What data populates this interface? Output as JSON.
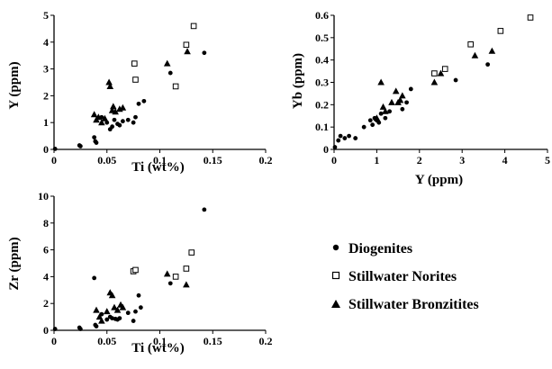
{
  "chart_data": [
    {
      "type": "scatter",
      "xlabel": "Ti (wt%)",
      "ylabel": "Y (ppm)",
      "xlim": [
        0,
        0.2
      ],
      "ylim": [
        0,
        5
      ],
      "xticks": [
        "0",
        "0.05",
        "0.1",
        "0.15",
        "0.2"
      ],
      "yticks": [
        "0",
        "1",
        "2",
        "3",
        "4",
        "5"
      ],
      "grid": false,
      "series": [
        {
          "name": "Diogenites",
          "marker": "circle",
          "points": [
            [
              0.001,
              0.02
            ],
            [
              0.024,
              0.15
            ],
            [
              0.025,
              0.12
            ],
            [
              0.038,
              0.45
            ],
            [
              0.039,
              0.3
            ],
            [
              0.04,
              0.25
            ],
            [
              0.045,
              1.2
            ],
            [
              0.05,
              1.0
            ],
            [
              0.053,
              0.75
            ],
            [
              0.055,
              0.85
            ],
            [
              0.057,
              1.1
            ],
            [
              0.06,
              0.95
            ],
            [
              0.062,
              0.9
            ],
            [
              0.065,
              1.05
            ],
            [
              0.07,
              1.1
            ],
            [
              0.075,
              1.0
            ],
            [
              0.077,
              1.2
            ],
            [
              0.08,
              1.7
            ],
            [
              0.085,
              1.8
            ],
            [
              0.11,
              2.85
            ],
            [
              0.142,
              3.6
            ]
          ]
        },
        {
          "name": "Stillwater Norites",
          "marker": "square",
          "points": [
            [
              0.076,
              3.2
            ],
            [
              0.077,
              2.6
            ],
            [
              0.115,
              2.35
            ],
            [
              0.125,
              3.9
            ],
            [
              0.132,
              4.6
            ]
          ]
        },
        {
          "name": "Stillwater Bronzitites",
          "marker": "triangle",
          "points": [
            [
              0.038,
              1.3
            ],
            [
              0.04,
              1.1
            ],
            [
              0.042,
              1.2
            ],
            [
              0.045,
              1.0
            ],
            [
              0.048,
              1.15
            ],
            [
              0.052,
              2.5
            ],
            [
              0.053,
              2.35
            ],
            [
              0.055,
              1.45
            ],
            [
              0.056,
              1.6
            ],
            [
              0.058,
              1.4
            ],
            [
              0.062,
              1.5
            ],
            [
              0.065,
              1.55
            ],
            [
              0.107,
              3.2
            ],
            [
              0.126,
              3.65
            ]
          ]
        }
      ]
    },
    {
      "type": "scatter",
      "xlabel": "Y (ppm)",
      "ylabel": "Yb (ppm)",
      "xlim": [
        0,
        5
      ],
      "ylim": [
        0,
        0.6
      ],
      "xticks": [
        "0",
        "1",
        "2",
        "3",
        "4",
        "5"
      ],
      "yticks": [
        "0",
        "0.1",
        "0.2",
        "0.3",
        "0.4",
        "0.5",
        "0.6"
      ],
      "grid": false,
      "series": [
        {
          "name": "Diogenites",
          "marker": "circle",
          "points": [
            [
              0.02,
              0.01
            ],
            [
              0.1,
              0.04
            ],
            [
              0.15,
              0.06
            ],
            [
              0.25,
              0.05
            ],
            [
              0.35,
              0.06
            ],
            [
              0.5,
              0.05
            ],
            [
              0.7,
              0.1
            ],
            [
              0.85,
              0.13
            ],
            [
              0.9,
              0.11
            ],
            [
              0.95,
              0.14
            ],
            [
              1.0,
              0.13
            ],
            [
              1.05,
              0.12
            ],
            [
              1.1,
              0.16
            ],
            [
              1.2,
              0.14
            ],
            [
              1.3,
              0.17
            ],
            [
              1.6,
              0.18
            ],
            [
              1.7,
              0.21
            ],
            [
              1.8,
              0.27
            ],
            [
              2.85,
              0.31
            ],
            [
              3.6,
              0.38
            ]
          ]
        },
        {
          "name": "Stillwater Norites",
          "marker": "square",
          "points": [
            [
              2.35,
              0.34
            ],
            [
              2.6,
              0.36
            ],
            [
              3.2,
              0.47
            ],
            [
              3.9,
              0.53
            ],
            [
              4.6,
              0.59
            ]
          ]
        },
        {
          "name": "Stillwater Bronzitites",
          "marker": "triangle",
          "points": [
            [
              1.0,
              0.14
            ],
            [
              1.1,
              0.3
            ],
            [
              1.15,
              0.19
            ],
            [
              1.2,
              0.17
            ],
            [
              1.35,
              0.21
            ],
            [
              1.45,
              0.26
            ],
            [
              1.5,
              0.21
            ],
            [
              1.55,
              0.22
            ],
            [
              1.6,
              0.24
            ],
            [
              2.35,
              0.3
            ],
            [
              2.5,
              0.34
            ],
            [
              3.3,
              0.42
            ],
            [
              3.7,
              0.44
            ]
          ]
        }
      ]
    },
    {
      "type": "scatter",
      "xlabel": "Ti (wt%)",
      "ylabel": "Zr (ppm)",
      "xlim": [
        0,
        0.2
      ],
      "ylim": [
        0,
        10
      ],
      "xticks": [
        "0",
        "0.05",
        "0.1",
        "0.15",
        "0.2"
      ],
      "yticks": [
        "0",
        "2",
        "4",
        "6",
        "8",
        "10"
      ],
      "grid": false,
      "series": [
        {
          "name": "Diogenites",
          "marker": "circle",
          "points": [
            [
              0.001,
              0.1
            ],
            [
              0.024,
              0.2
            ],
            [
              0.025,
              0.1
            ],
            [
              0.038,
              3.9
            ],
            [
              0.039,
              0.4
            ],
            [
              0.04,
              0.3
            ],
            [
              0.045,
              1.2
            ],
            [
              0.05,
              0.8
            ],
            [
              0.053,
              1.0
            ],
            [
              0.055,
              0.9
            ],
            [
              0.058,
              0.85
            ],
            [
              0.06,
              0.8
            ],
            [
              0.062,
              0.9
            ],
            [
              0.07,
              1.3
            ],
            [
              0.075,
              0.7
            ],
            [
              0.077,
              1.4
            ],
            [
              0.08,
              2.6
            ],
            [
              0.082,
              1.7
            ],
            [
              0.11,
              3.5
            ],
            [
              0.142,
              9.0
            ]
          ]
        },
        {
          "name": "Stillwater Norites",
          "marker": "square",
          "points": [
            [
              0.075,
              4.4
            ],
            [
              0.077,
              4.5
            ],
            [
              0.115,
              4.0
            ],
            [
              0.125,
              4.6
            ],
            [
              0.13,
              5.8
            ]
          ]
        },
        {
          "name": "Stillwater Bronzitites",
          "marker": "triangle",
          "points": [
            [
              0.04,
              1.5
            ],
            [
              0.043,
              1.0
            ],
            [
              0.045,
              0.7
            ],
            [
              0.05,
              1.4
            ],
            [
              0.053,
              2.8
            ],
            [
              0.055,
              2.6
            ],
            [
              0.057,
              1.7
            ],
            [
              0.06,
              1.5
            ],
            [
              0.063,
              1.9
            ],
            [
              0.065,
              1.7
            ],
            [
              0.107,
              4.2
            ],
            [
              0.125,
              3.4
            ]
          ]
        }
      ]
    }
  ],
  "legend": {
    "placement": "right",
    "entries": [
      {
        "label": "Diogenites",
        "marker": "circle"
      },
      {
        "label": "Stillwater Norites",
        "marker": "square"
      },
      {
        "label": "Stillwater Bronzitites",
        "marker": "triangle"
      }
    ]
  }
}
